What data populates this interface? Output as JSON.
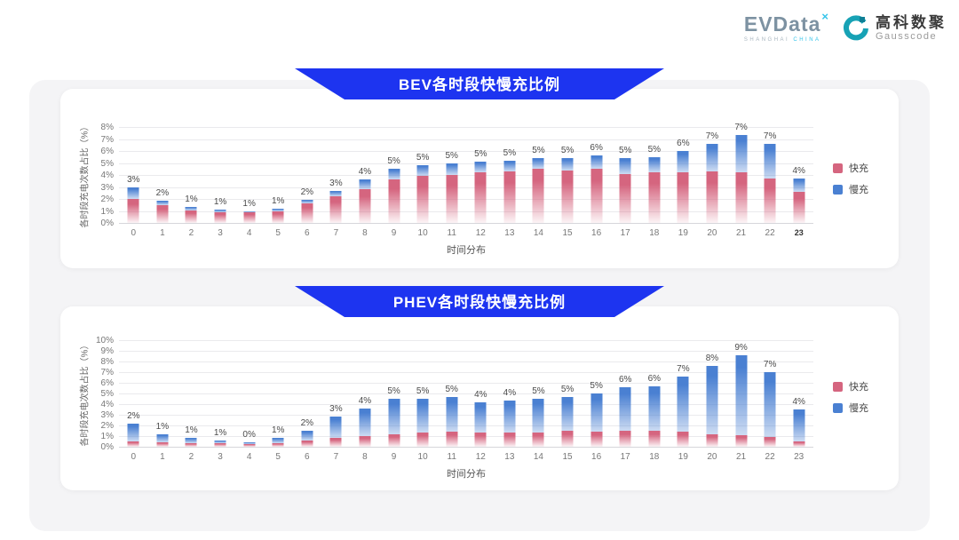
{
  "header": {
    "evdata": {
      "text": "EVData",
      "mark": "×",
      "subtext1": "SHANGHAI",
      "subtext2": "CHINA"
    },
    "gausscode": {
      "cn": "高科数聚",
      "en": "Gausscode"
    }
  },
  "colors": {
    "banner_blue": "#1d34f0",
    "fast_pink": "#d5657f",
    "slow_blue": "#4a80d2",
    "panel_gray": "#f4f4f6"
  },
  "chart_data": [
    {
      "type": "bar",
      "stacked": true,
      "title": "BEV各时段快慢充比例",
      "xlabel": "时间分布",
      "ylabel": "各时段充电次数占比（%）",
      "ymax": 8,
      "ytick_step": 1,
      "grid": true,
      "legend_position": "right",
      "bold_last_xtick": true,
      "categories": [
        "0",
        "1",
        "2",
        "3",
        "4",
        "5",
        "6",
        "7",
        "8",
        "9",
        "10",
        "11",
        "12",
        "13",
        "14",
        "15",
        "16",
        "17",
        "18",
        "19",
        "20",
        "21",
        "22",
        "23"
      ],
      "series": [
        {
          "name": "快充",
          "color": "#d5657f",
          "values": [
            2.0,
            1.45,
            1.05,
            0.9,
            0.9,
            1.0,
            1.6,
            2.2,
            2.85,
            3.6,
            3.9,
            4.0,
            4.2,
            4.3,
            4.5,
            4.4,
            4.5,
            4.1,
            4.2,
            4.2,
            4.3,
            4.2,
            3.7,
            2.6
          ]
        },
        {
          "name": "慢充",
          "color": "#4a80d2",
          "values": [
            0.95,
            0.4,
            0.25,
            0.2,
            0.05,
            0.15,
            0.3,
            0.5,
            0.8,
            0.9,
            0.95,
            1.0,
            0.9,
            0.9,
            0.9,
            1.0,
            1.1,
            1.3,
            1.3,
            1.8,
            2.3,
            3.1,
            2.9,
            1.1
          ]
        }
      ],
      "total_labels": [
        "3%",
        "2%",
        "1%",
        "1%",
        "1%",
        "1%",
        "2%",
        "3%",
        "4%",
        "5%",
        "5%",
        "5%",
        "5%",
        "5%",
        "5%",
        "5%",
        "6%",
        "5%",
        "5%",
        "6%",
        "7%",
        "7%",
        "7%",
        "4%"
      ]
    },
    {
      "type": "bar",
      "stacked": true,
      "title": "PHEV各时段快慢充比例",
      "xlabel": "时间分布",
      "ylabel": "各时段充电次数占比（%）",
      "ymax": 10,
      "ytick_step": 1,
      "grid": true,
      "legend_position": "right",
      "bold_last_xtick": false,
      "categories": [
        "0",
        "1",
        "2",
        "3",
        "4",
        "5",
        "6",
        "7",
        "8",
        "9",
        "10",
        "11",
        "12",
        "13",
        "14",
        "15",
        "16",
        "17",
        "18",
        "19",
        "20",
        "21",
        "22",
        "23"
      ],
      "series": [
        {
          "name": "快充",
          "color": "#d5657f",
          "values": [
            0.5,
            0.4,
            0.35,
            0.3,
            0.25,
            0.35,
            0.6,
            0.8,
            1.0,
            1.2,
            1.3,
            1.4,
            1.3,
            1.3,
            1.3,
            1.5,
            1.4,
            1.5,
            1.5,
            1.4,
            1.2,
            1.1,
            0.9,
            0.5
          ]
        },
        {
          "name": "慢充",
          "color": "#4a80d2",
          "values": [
            1.7,
            0.8,
            0.45,
            0.3,
            0.2,
            0.5,
            0.9,
            2.0,
            2.6,
            3.3,
            3.2,
            3.3,
            2.9,
            3.0,
            3.2,
            3.2,
            3.6,
            4.1,
            4.2,
            5.2,
            6.4,
            7.5,
            6.1,
            3.0
          ]
        }
      ],
      "total_labels": [
        "2%",
        "1%",
        "1%",
        "1%",
        "0%",
        "1%",
        "2%",
        "3%",
        "4%",
        "5%",
        "5%",
        "5%",
        "4%",
        "4%",
        "5%",
        "5%",
        "5%",
        "6%",
        "6%",
        "7%",
        "8%",
        "9%",
        "7%",
        "4%"
      ]
    }
  ]
}
